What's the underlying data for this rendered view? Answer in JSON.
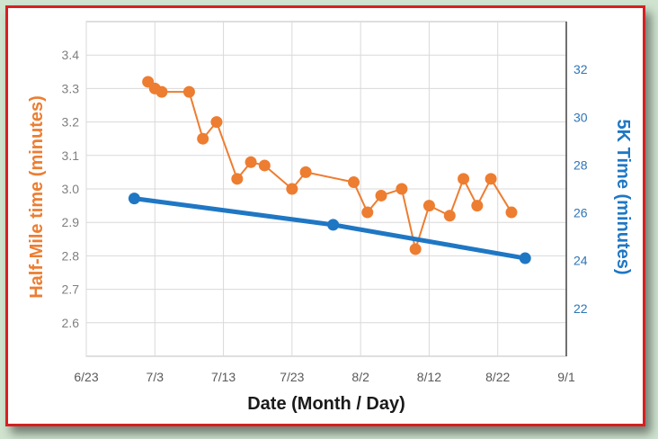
{
  "chart_data": {
    "type": "line",
    "xlabel": "Date (Month / Day)",
    "ylabel_left": "Half-Mile time (minutes)",
    "ylabel_right": "5K Time (minutes)",
    "x_ticks": [
      "6/23",
      "7/3",
      "7/13",
      "7/23",
      "8/2",
      "8/12",
      "8/22",
      "9/1"
    ],
    "y_left_ticks": [
      "2.6",
      "2.7",
      "2.8",
      "2.9",
      "3.0",
      "3.1",
      "3.2",
      "3.3",
      "3.4"
    ],
    "y_right_ticks": [
      "22",
      "24",
      "26",
      "28",
      "30",
      "32"
    ],
    "xlim": [
      "6/23",
      "9/1"
    ],
    "ylim_left": [
      2.5,
      3.5
    ],
    "ylim_right": [
      20,
      34
    ],
    "grid": true,
    "colors": {
      "half_mile": "#ed7d31",
      "five_k": "#1f77c4",
      "frame": "#d62020"
    },
    "series": [
      {
        "axis": "left",
        "points": [
          {
            "x": "7/2",
            "y": 3.32
          },
          {
            "x": "7/3",
            "y": 3.3
          },
          {
            "x": "7/4",
            "y": 3.29
          },
          {
            "x": "7/8",
            "y": 3.29
          },
          {
            "x": "7/10",
            "y": 3.15
          },
          {
            "x": "7/12",
            "y": 3.2
          },
          {
            "x": "7/15",
            "y": 3.03
          },
          {
            "x": "7/17",
            "y": 3.08
          },
          {
            "x": "7/19",
            "y": 3.07
          },
          {
            "x": "7/23",
            "y": 3.0
          },
          {
            "x": "7/25",
            "y": 3.05
          },
          {
            "x": "8/1",
            "y": 3.02
          },
          {
            "x": "8/3",
            "y": 2.93
          },
          {
            "x": "8/5",
            "y": 2.98
          },
          {
            "x": "8/8",
            "y": 3.0
          },
          {
            "x": "8/10",
            "y": 2.82
          },
          {
            "x": "8/12",
            "y": 2.95
          },
          {
            "x": "8/15",
            "y": 2.92
          },
          {
            "x": "8/17",
            "y": 3.03
          },
          {
            "x": "8/19",
            "y": 2.95
          },
          {
            "x": "8/21",
            "y": 3.03
          },
          {
            "x": "8/24",
            "y": 2.93
          }
        ]
      },
      {
        "axis": "right",
        "points": [
          {
            "x": "6/30",
            "y": 26.6
          },
          {
            "x": "7/29",
            "y": 25.5
          },
          {
            "x": "8/26",
            "y": 24.1
          }
        ]
      }
    ]
  }
}
